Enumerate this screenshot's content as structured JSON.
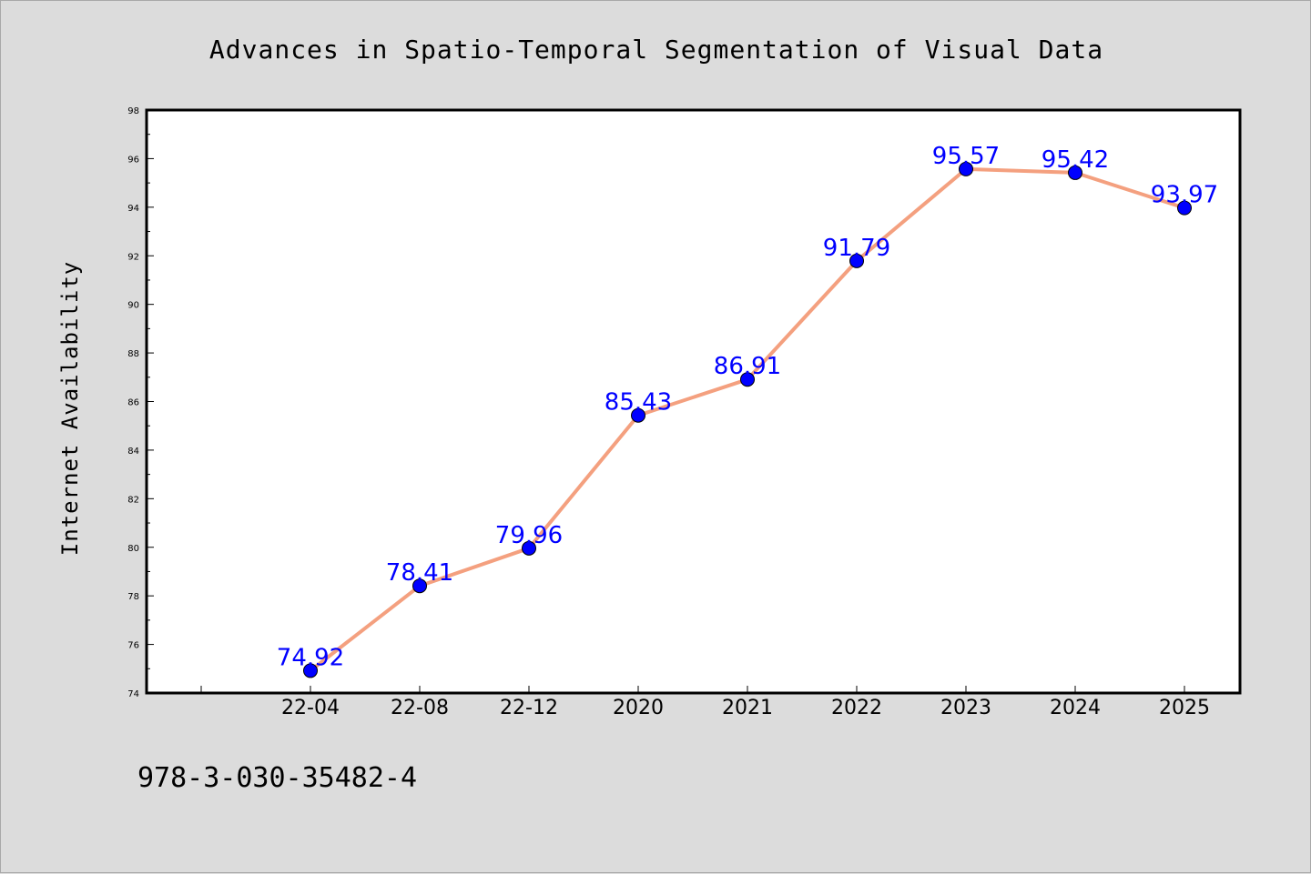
{
  "chart_data": {
    "type": "line",
    "title": "Advances in Spatio-Temporal Segmentation of Visual Data",
    "xlabel": "",
    "ylabel": "Internet Availability",
    "categories": [
      "22-04",
      "22-08",
      "22-12",
      "2020",
      "2021",
      "2022",
      "2023",
      "2024",
      "2025"
    ],
    "series": [
      {
        "values": [
          74.92,
          78.41,
          79.96,
          85.43,
          86.91,
          91.79,
          95.57,
          95.42,
          93.97
        ],
        "labels": [
          "74.92",
          "78.41",
          "79.96",
          "85.43",
          "86.91",
          "91.79",
          "95.57",
          "95.42",
          "93.97"
        ]
      }
    ],
    "ylim": [
      74,
      98
    ],
    "yticks": [
      "74",
      "76",
      "78",
      "80",
      "82",
      "84",
      "86",
      "88",
      "90",
      "92",
      "94",
      "96",
      "98"
    ],
    "grid": false,
    "colors": {
      "line": "#f4a07f",
      "marker": "#0000ff",
      "label": "#0000ff",
      "plot_bg": "#ffffff",
      "page_bg": "#dcdcdc"
    }
  },
  "footer": {
    "isbn": "978-3-030-35482-4"
  }
}
